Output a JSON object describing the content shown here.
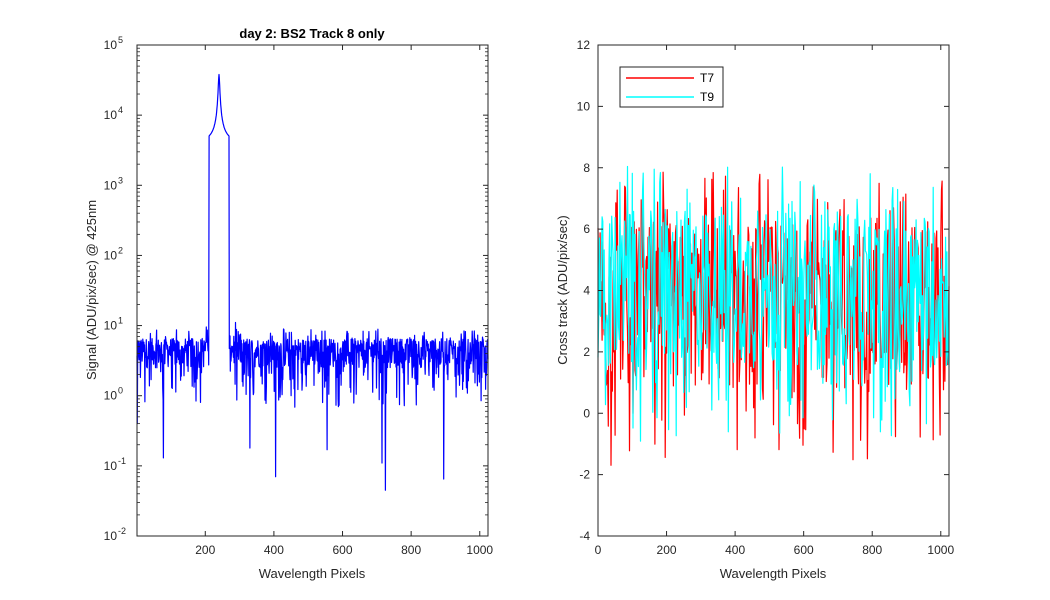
{
  "chart_data": [
    {
      "type": "line",
      "title": "day 2: BS2   Track 8 only",
      "xlabel": "Wavelength Pixels",
      "ylabel": "Signal (ADU/pix/sec) @ 425nm",
      "xlim": [
        1,
        1024
      ],
      "ylim": [
        0.01,
        100000
      ],
      "yscale": "log",
      "xticks": [
        200,
        400,
        600,
        800,
        1000
      ],
      "yticks": [
        {
          "value": 0.01,
          "base": "10",
          "exp": "-2"
        },
        {
          "value": 0.1,
          "base": "10",
          "exp": "-1"
        },
        {
          "value": 1,
          "base": "10",
          "exp": "0"
        },
        {
          "value": 10,
          "base": "10",
          "exp": "1"
        },
        {
          "value": 100,
          "base": "10",
          "exp": "2"
        },
        {
          "value": 1000,
          "base": "10",
          "exp": "3"
        },
        {
          "value": 10000,
          "base": "10",
          "exp": "4"
        },
        {
          "value": 100000,
          "base": "10",
          "exp": "5"
        }
      ],
      "grid": false,
      "series": [
        {
          "color": "#0000ff",
          "peak_x": 240,
          "peak_y": 38000,
          "baseline_y": 4.5,
          "notable_dips": [
            {
              "x": 2,
              "y": 0.4
            },
            {
              "x": 78,
              "y": 0.13
            },
            {
              "x": 330,
              "y": 0.18
            },
            {
              "x": 405,
              "y": 0.07
            },
            {
              "x": 555,
              "y": 0.17
            },
            {
              "x": 715,
              "y": 0.11
            },
            {
              "x": 725,
              "y": 0.045
            },
            {
              "x": 895,
              "y": 0.065
            }
          ]
        }
      ]
    },
    {
      "type": "line",
      "title": "",
      "xlabel": "Wavelength Pixels",
      "ylabel": "Cross track (ADU/pix/sec)",
      "xlim": [
        0,
        1024
      ],
      "ylim": [
        -4,
        12
      ],
      "xticks": [
        0,
        200,
        400,
        600,
        800,
        1000
      ],
      "yticks": [
        -4,
        -2,
        0,
        2,
        4,
        6,
        8,
        10,
        12
      ],
      "grid": false,
      "legend": "top-left",
      "series": [
        {
          "name": "T7",
          "color": "#ff0000",
          "mean": 3.5
        },
        {
          "name": "T9",
          "color": "#00ffff",
          "mean": 4.0
        }
      ]
    }
  ]
}
